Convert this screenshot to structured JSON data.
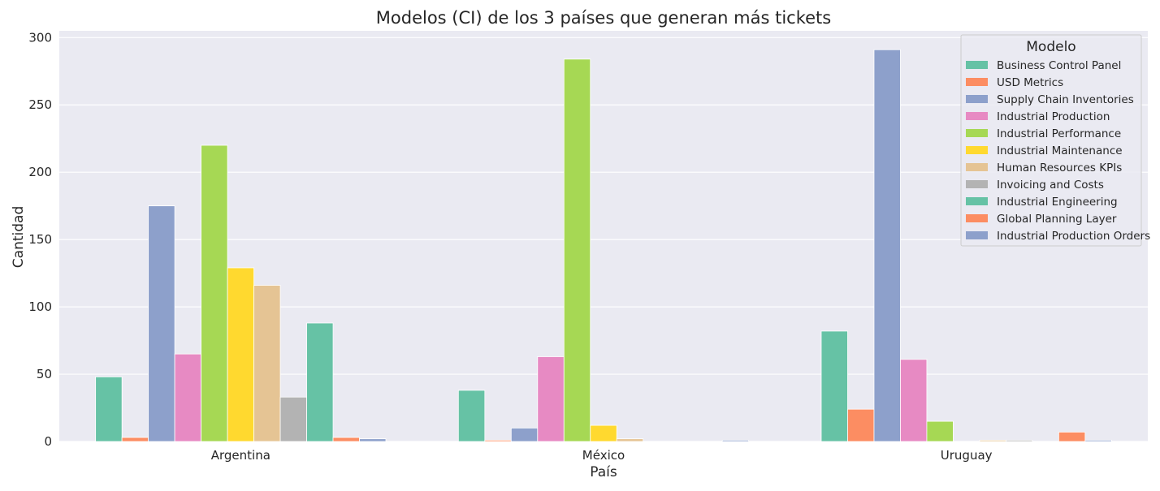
{
  "chart_data": {
    "type": "bar",
    "title": "Modelos (CI) de los 3 países que generan más tickets",
    "xlabel": "País",
    "ylabel": "Cantidad",
    "categories": [
      "Argentina",
      "México",
      "Uruguay"
    ],
    "ylim": [
      0,
      305
    ],
    "yticks": [
      0,
      50,
      100,
      150,
      200,
      250,
      300
    ],
    "grid": true,
    "background": "#eaeaf2",
    "legend": {
      "title": "Modelo",
      "placement": "top-right"
    },
    "series": [
      {
        "name": "Business Control Panel",
        "color": "#66c2a5",
        "values": [
          48,
          38,
          82
        ]
      },
      {
        "name": "USD Metrics",
        "color": "#fc8d62",
        "values": [
          3,
          1,
          24
        ]
      },
      {
        "name": "Supply Chain Inventories",
        "color": "#8da0cb",
        "values": [
          175,
          10,
          291
        ]
      },
      {
        "name": "Industrial Production",
        "color": "#e78ac3",
        "values": [
          65,
          63,
          61
        ]
      },
      {
        "name": "Industrial Performance",
        "color": "#a6d854",
        "values": [
          220,
          284,
          15
        ]
      },
      {
        "name": "Industrial Maintenance",
        "color": "#ffd92f",
        "values": [
          129,
          12,
          0
        ]
      },
      {
        "name": "Human Resources KPIs",
        "color": "#e5c494",
        "values": [
          116,
          2,
          1
        ]
      },
      {
        "name": "Invoicing and Costs",
        "color": "#b3b3b3",
        "values": [
          33,
          0,
          1
        ]
      },
      {
        "name": "Industrial Engineering",
        "color": "#66c2a5",
        "values": [
          88,
          0,
          0
        ]
      },
      {
        "name": "Global Planning Layer",
        "color": "#fc8d62",
        "values": [
          3,
          0,
          7
        ]
      },
      {
        "name": "Industrial Production Orders",
        "color": "#8da0cb",
        "values": [
          2,
          1,
          1
        ]
      }
    ]
  }
}
